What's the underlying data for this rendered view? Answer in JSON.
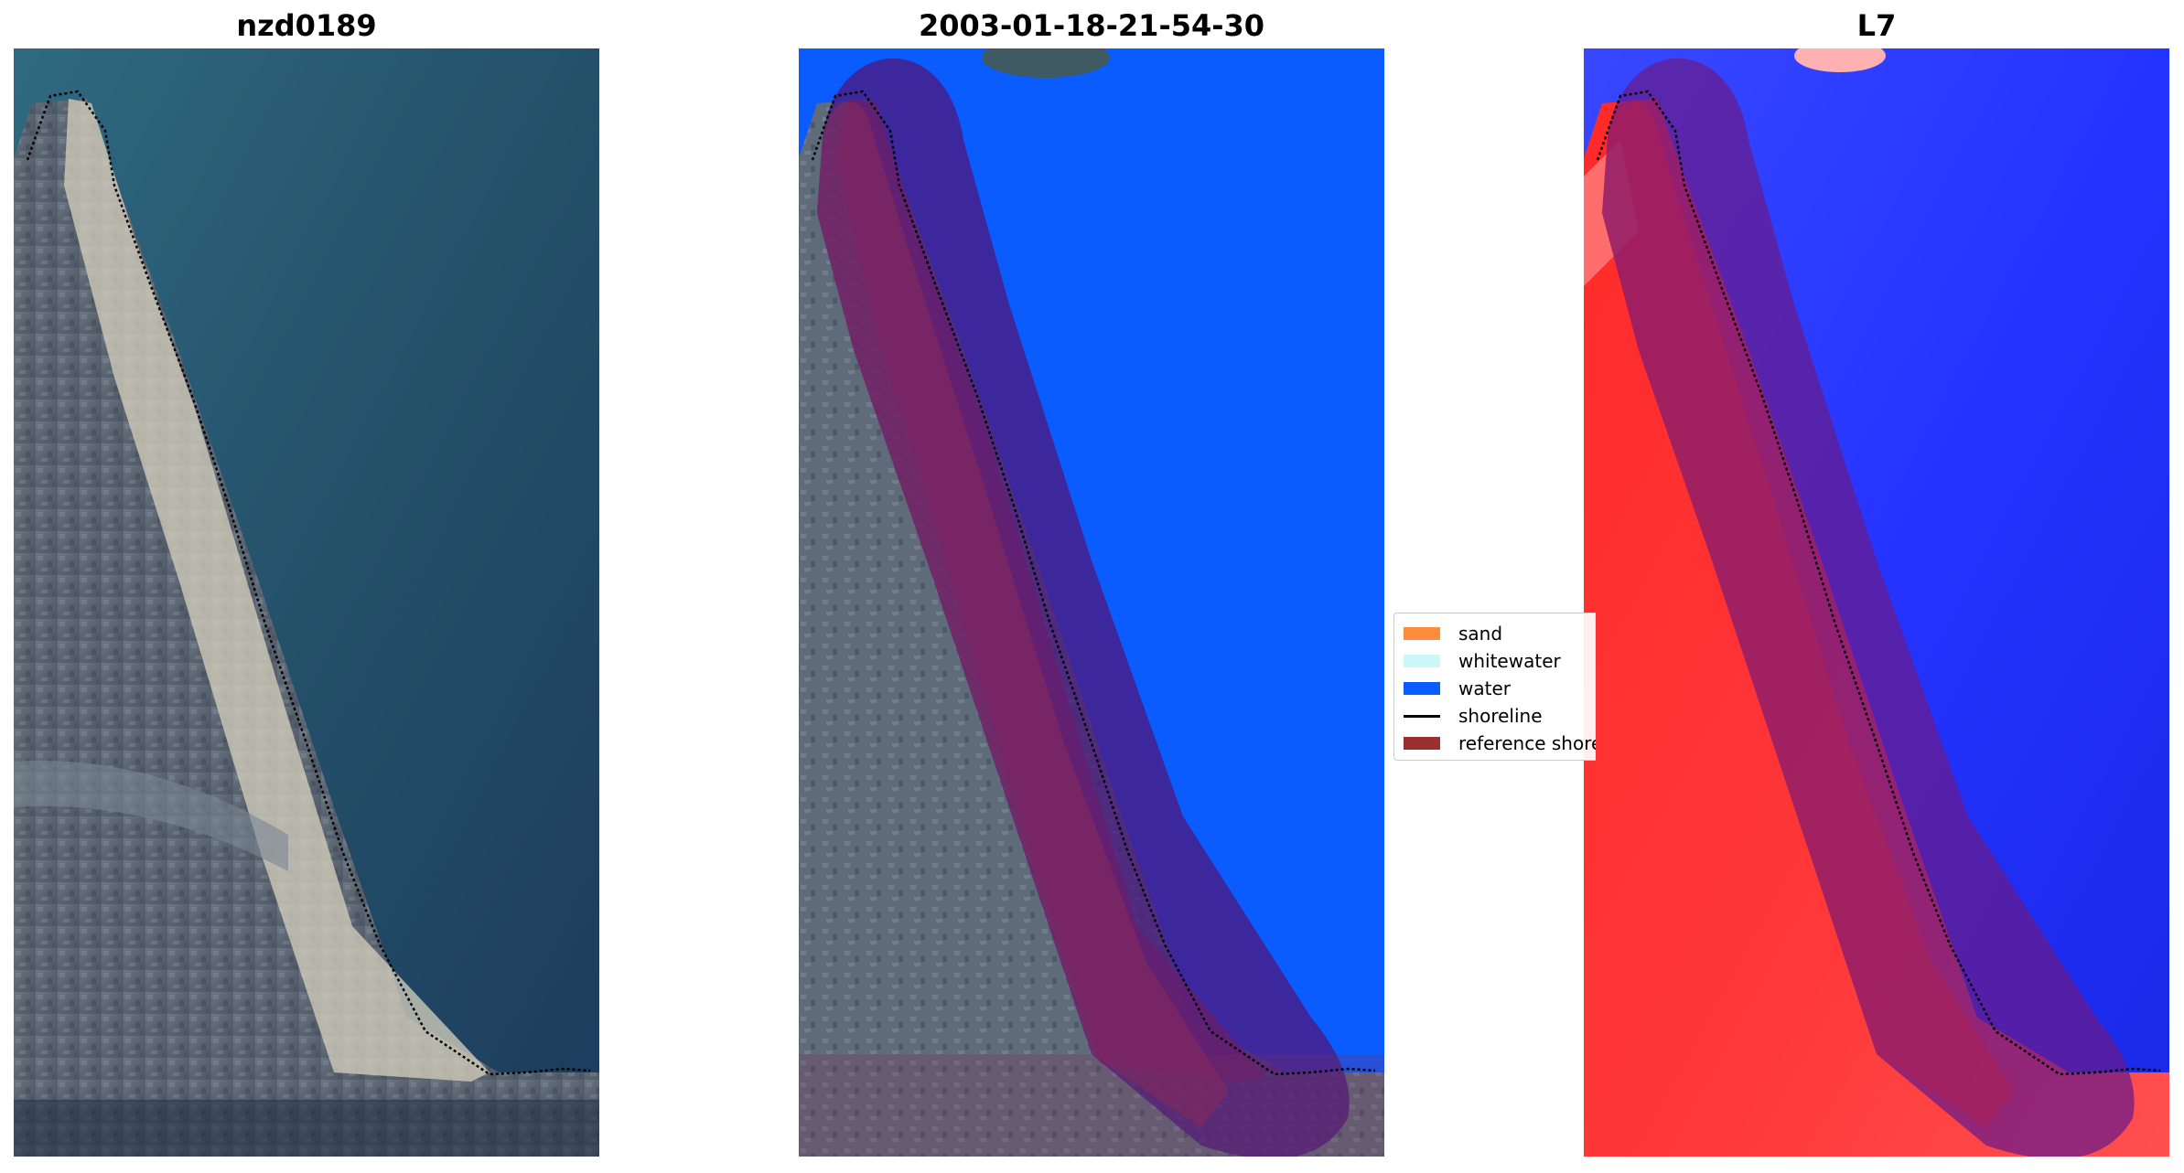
{
  "panels": [
    {
      "title": "nzd0189"
    },
    {
      "title": "2003-01-18-21-54-30"
    },
    {
      "title": "L7"
    }
  ],
  "legend": {
    "items": [
      {
        "label": "sand",
        "color": "#ff8c3a",
        "kind": "patch"
      },
      {
        "label": "whitewater",
        "color": "#ccf7f7",
        "kind": "patch"
      },
      {
        "label": "water",
        "color": "#0a5cff",
        "kind": "patch"
      },
      {
        "label": "shoreline",
        "color": "#000000",
        "kind": "line"
      },
      {
        "label": "reference shoreline buffer",
        "color": "#9c3030",
        "kind": "patch"
      }
    ]
  },
  "colors": {
    "ocean": "#24506a",
    "land": "#5a6677",
    "beach": "#d8d2bf",
    "water_class": "#0a5cff",
    "buffer_overlay": "#6a1a6a",
    "index_red": "#ff2020",
    "index_blue": "#2030ff"
  }
}
